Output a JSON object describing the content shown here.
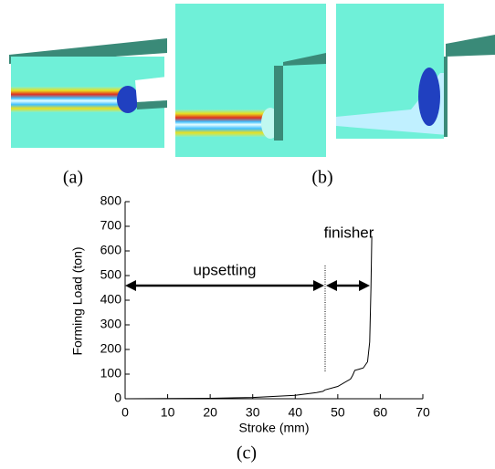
{
  "figure_labels": [
    "(a)",
    "(b)",
    "(c)"
  ],
  "chart_data": {
    "type": "line",
    "xlabel": "Stroke (mm)",
    "ylabel": "Forming Load (ton)",
    "annotations": [
      "upsetting",
      "finisher"
    ],
    "x": [
      0,
      10,
      20,
      30,
      40,
      45,
      46.5,
      47,
      50,
      53,
      53.5,
      54,
      55,
      56,
      57,
      57.5,
      57.8,
      58
    ],
    "values": [
      0,
      1,
      2,
      5,
      14,
      25,
      30,
      36,
      50,
      80,
      95,
      115,
      120,
      125,
      150,
      230,
      450,
      660
    ],
    "color": "#000000",
    "xlim": [
      0,
      70
    ],
    "xticks": [
      0,
      10,
      20,
      30,
      40,
      50,
      60,
      70
    ],
    "ylim": [
      0,
      800
    ],
    "yticks": [
      0,
      100,
      200,
      300,
      400,
      500,
      600,
      700,
      800
    ]
  }
}
